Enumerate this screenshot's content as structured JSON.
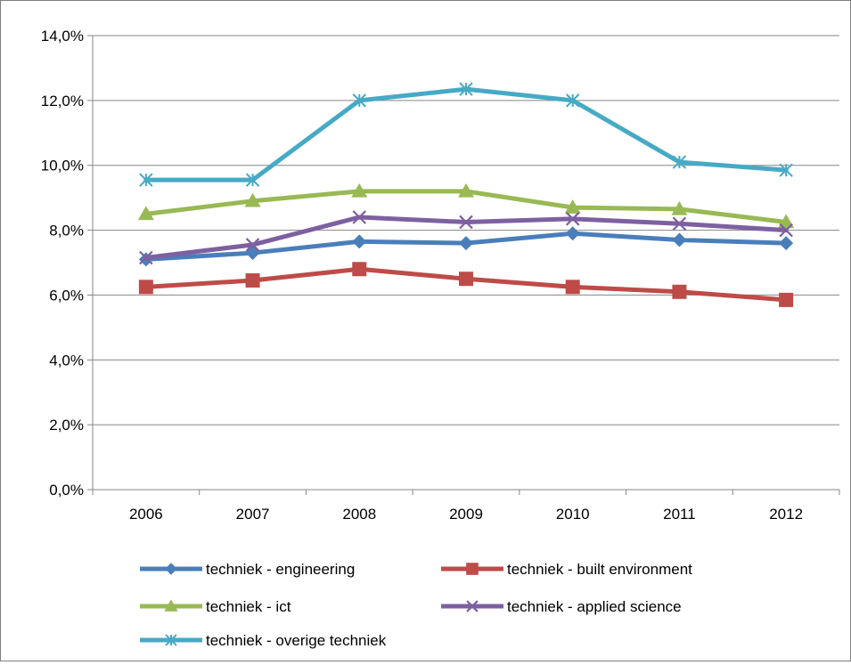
{
  "chart_data": {
    "type": "line",
    "categories": [
      "2006",
      "2007",
      "2008",
      "2009",
      "2010",
      "2011",
      "2012"
    ],
    "ylim": [
      0,
      14
    ],
    "yticks": [
      0,
      2,
      4,
      6,
      8,
      10,
      12,
      14
    ],
    "ytick_labels": [
      "0,0%",
      "2,0%",
      "4,0%",
      "6,0%",
      "8,0%",
      "10,0%",
      "12,0%",
      "14,0%"
    ],
    "grid": true,
    "legend_position": "bottom",
    "series": [
      {
        "name": "techniek - engineering",
        "color": "#4a7ebb",
        "marker": "diamond",
        "values": [
          7.1,
          7.3,
          7.65,
          7.6,
          7.9,
          7.7,
          7.6
        ]
      },
      {
        "name": "techniek - built environment",
        "color": "#be4b48",
        "marker": "square",
        "values": [
          6.25,
          6.45,
          6.8,
          6.5,
          6.25,
          6.1,
          5.85
        ]
      },
      {
        "name": "techniek - ict",
        "color": "#98b954",
        "marker": "triangle",
        "values": [
          8.5,
          8.9,
          9.2,
          9.2,
          8.7,
          8.65,
          8.25
        ]
      },
      {
        "name": "techniek - applied science",
        "color": "#7d60a0",
        "marker": "x",
        "values": [
          7.15,
          7.55,
          8.4,
          8.25,
          8.35,
          8.2,
          8.0
        ]
      },
      {
        "name": "techniek - overige techniek",
        "color": "#46aac5",
        "marker": "asterisk",
        "values": [
          9.55,
          9.55,
          12.0,
          12.35,
          12.0,
          10.1,
          9.85
        ]
      }
    ]
  }
}
